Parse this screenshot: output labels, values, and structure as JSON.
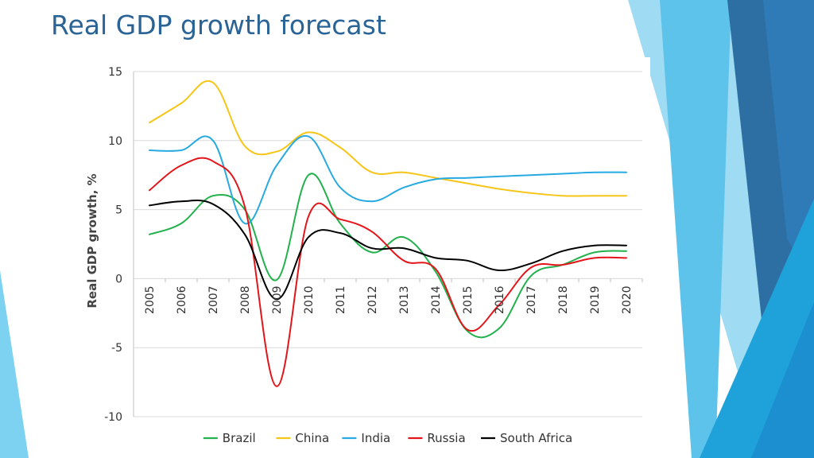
{
  "slide": {
    "title": "Real GDP growth forecast"
  },
  "colors": {
    "title": "#2a6496",
    "Brazil": "#22b14c",
    "China": "#f5c518",
    "India": "#27aae1",
    "Russia": "#e3151a",
    "South Africa": "#000000"
  },
  "chart_data": {
    "type": "line",
    "title": "",
    "xlabel": "",
    "ylabel": "Real GDP growth, %",
    "ylim": [
      -10,
      15
    ],
    "yticks": [
      15,
      10,
      5,
      0,
      -5,
      -10
    ],
    "grid": true,
    "legend_position": "bottom",
    "x": [
      "2005",
      "2006",
      "2007",
      "2008",
      "2009",
      "2010",
      "2011",
      "2012",
      "2013",
      "2014",
      "2015",
      "2016",
      "2017",
      "2018",
      "2019",
      "2020"
    ],
    "series": [
      {
        "name": "Brazil",
        "values": [
          3.2,
          4.0,
          6.0,
          5.0,
          -0.1,
          7.5,
          4.0,
          1.9,
          3.0,
          0.5,
          -3.8,
          -3.6,
          0.2,
          1.0,
          1.9,
          2.0
        ]
      },
      {
        "name": "China",
        "values": [
          11.3,
          12.7,
          14.2,
          9.6,
          9.2,
          10.6,
          9.5,
          7.7,
          7.7,
          7.3,
          6.9,
          6.5,
          6.2,
          6.0,
          6.0,
          6.0
        ]
      },
      {
        "name": "India",
        "values": [
          9.3,
          9.3,
          10.0,
          4.0,
          8.2,
          10.3,
          6.6,
          5.6,
          6.6,
          7.2,
          7.3,
          7.4,
          7.5,
          7.6,
          7.7,
          7.7
        ]
      },
      {
        "name": "Russia",
        "values": [
          6.4,
          8.2,
          8.5,
          5.2,
          -7.8,
          4.5,
          4.3,
          3.4,
          1.3,
          0.7,
          -3.7,
          -1.9,
          0.8,
          1.0,
          1.5,
          1.5
        ]
      },
      {
        "name": "South Africa",
        "values": [
          5.3,
          5.6,
          5.4,
          3.2,
          -1.5,
          3.0,
          3.3,
          2.2,
          2.2,
          1.5,
          1.3,
          0.6,
          1.1,
          2.0,
          2.4,
          2.4
        ]
      }
    ]
  }
}
